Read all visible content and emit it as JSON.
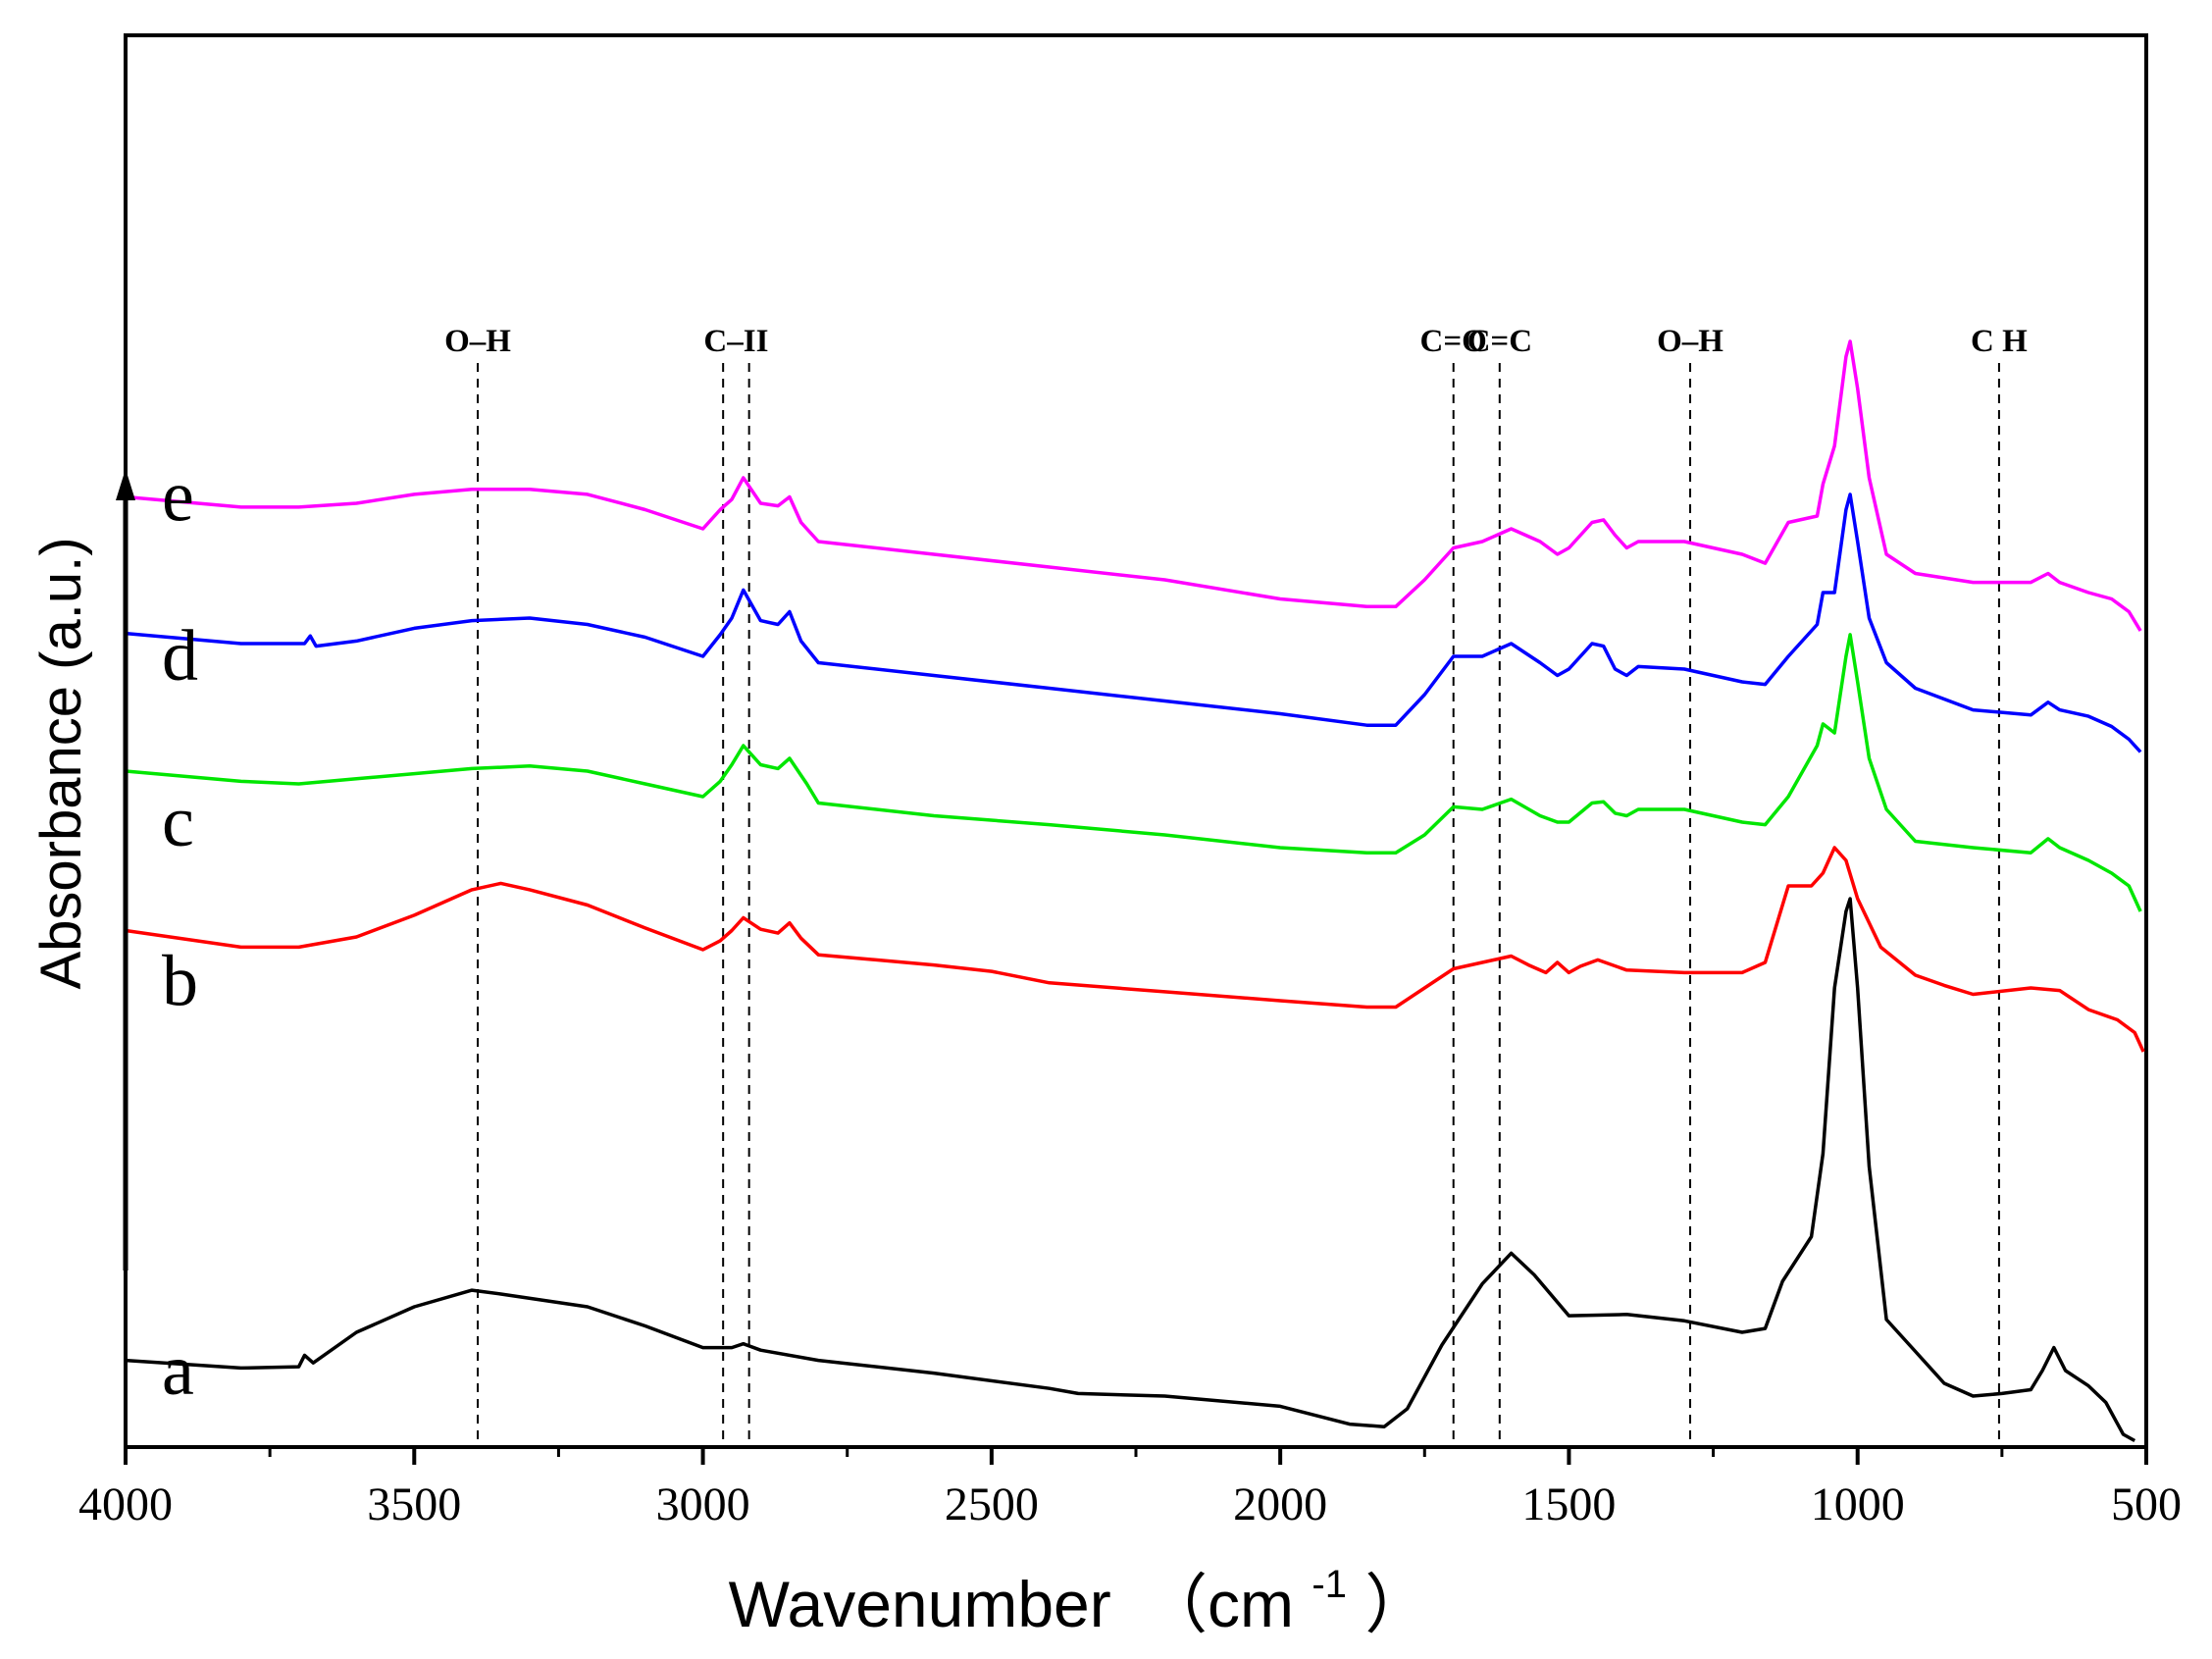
{
  "chart_data": {
    "type": "line",
    "title": "",
    "xlabel": "Wavenumber",
    "xlabel_unit": "（cm",
    "xlabel_unit_sup": "-1",
    "xlabel_unit_close": "）",
    "ylabel": "Absorbance (a.u.)",
    "xlim": [
      4000,
      500
    ],
    "x_ticks": [
      4000,
      3500,
      3000,
      2500,
      2000,
      1500,
      1000,
      500
    ],
    "x_tick_labels": [
      "4000",
      "3500",
      "3000",
      "2500",
      "2000",
      "1500",
      "1000",
      "500"
    ],
    "x_minor_step": 250,
    "ylim": [
      0,
      1
    ],
    "grid": false,
    "legend": "none (labels placed at the left of each curve)",
    "series": [
      {
        "name": "a",
        "color": "#000000",
        "points": [
          [
            4000,
            0.068
          ],
          [
            3800,
            0.062
          ],
          [
            3700,
            0.063
          ],
          [
            3690,
            0.072
          ],
          [
            3675,
            0.066
          ],
          [
            3600,
            0.09
          ],
          [
            3500,
            0.11
          ],
          [
            3400,
            0.123
          ],
          [
            3350,
            0.12
          ],
          [
            3200,
            0.11
          ],
          [
            3100,
            0.095
          ],
          [
            3000,
            0.078
          ],
          [
            2950,
            0.078
          ],
          [
            2930,
            0.081
          ],
          [
            2900,
            0.076
          ],
          [
            2800,
            0.068
          ],
          [
            2600,
            0.058
          ],
          [
            2400,
            0.046
          ],
          [
            2350,
            0.042
          ],
          [
            2200,
            0.04
          ],
          [
            2000,
            0.032
          ],
          [
            1880,
            0.018
          ],
          [
            1820,
            0.016
          ],
          [
            1780,
            0.03
          ],
          [
            1720,
            0.08
          ],
          [
            1650,
            0.128
          ],
          [
            1600,
            0.152
          ],
          [
            1560,
            0.135
          ],
          [
            1500,
            0.103
          ],
          [
            1400,
            0.104
          ],
          [
            1300,
            0.099
          ],
          [
            1200,
            0.09
          ],
          [
            1160,
            0.093
          ],
          [
            1130,
            0.13
          ],
          [
            1080,
            0.165
          ],
          [
            1060,
            0.23
          ],
          [
            1040,
            0.36
          ],
          [
            1020,
            0.42
          ],
          [
            1013,
            0.43
          ],
          [
            1000,
            0.36
          ],
          [
            980,
            0.22
          ],
          [
            950,
            0.1
          ],
          [
            900,
            0.075
          ],
          [
            850,
            0.05
          ],
          [
            800,
            0.04
          ],
          [
            750,
            0.042
          ],
          [
            700,
            0.045
          ],
          [
            680,
            0.06
          ],
          [
            660,
            0.078
          ],
          [
            640,
            0.06
          ],
          [
            600,
            0.048
          ],
          [
            570,
            0.035
          ],
          [
            540,
            0.01
          ],
          [
            520,
            0.005
          ]
        ]
      },
      {
        "name": "b",
        "color": "#ff0000",
        "points": [
          [
            4000,
            0.405
          ],
          [
            3800,
            0.392
          ],
          [
            3700,
            0.392
          ],
          [
            3600,
            0.4
          ],
          [
            3500,
            0.417
          ],
          [
            3400,
            0.437
          ],
          [
            3350,
            0.442
          ],
          [
            3300,
            0.437
          ],
          [
            3200,
            0.425
          ],
          [
            3100,
            0.407
          ],
          [
            3000,
            0.39
          ],
          [
            2970,
            0.397
          ],
          [
            2950,
            0.405
          ],
          [
            2930,
            0.415
          ],
          [
            2900,
            0.406
          ],
          [
            2870,
            0.403
          ],
          [
            2850,
            0.411
          ],
          [
            2830,
            0.399
          ],
          [
            2800,
            0.386
          ],
          [
            2600,
            0.378
          ],
          [
            2500,
            0.373
          ],
          [
            2400,
            0.364
          ],
          [
            2200,
            0.357
          ],
          [
            2000,
            0.35
          ],
          [
            1850,
            0.345
          ],
          [
            1800,
            0.345
          ],
          [
            1750,
            0.36
          ],
          [
            1700,
            0.375
          ],
          [
            1650,
            0.38
          ],
          [
            1600,
            0.385
          ],
          [
            1570,
            0.378
          ],
          [
            1540,
            0.372
          ],
          [
            1520,
            0.38
          ],
          [
            1500,
            0.372
          ],
          [
            1480,
            0.377
          ],
          [
            1450,
            0.382
          ],
          [
            1400,
            0.374
          ],
          [
            1300,
            0.372
          ],
          [
            1200,
            0.372
          ],
          [
            1160,
            0.38
          ],
          [
            1120,
            0.44
          ],
          [
            1080,
            0.44
          ],
          [
            1060,
            0.45
          ],
          [
            1040,
            0.47
          ],
          [
            1020,
            0.46
          ],
          [
            1000,
            0.43
          ],
          [
            960,
            0.392
          ],
          [
            900,
            0.37
          ],
          [
            850,
            0.362
          ],
          [
            800,
            0.355
          ],
          [
            700,
            0.36
          ],
          [
            650,
            0.358
          ],
          [
            600,
            0.343
          ],
          [
            550,
            0.335
          ],
          [
            520,
            0.325
          ],
          [
            505,
            0.31
          ]
        ]
      },
      {
        "name": "c",
        "color": "#00e600",
        "points": [
          [
            4000,
            0.53
          ],
          [
            3800,
            0.522
          ],
          [
            3700,
            0.52
          ],
          [
            3600,
            0.524
          ],
          [
            3500,
            0.528
          ],
          [
            3400,
            0.532
          ],
          [
            3300,
            0.534
          ],
          [
            3200,
            0.53
          ],
          [
            3100,
            0.52
          ],
          [
            3000,
            0.51
          ],
          [
            2970,
            0.522
          ],
          [
            2950,
            0.535
          ],
          [
            2930,
            0.55
          ],
          [
            2900,
            0.535
          ],
          [
            2870,
            0.532
          ],
          [
            2850,
            0.54
          ],
          [
            2820,
            0.52
          ],
          [
            2800,
            0.505
          ],
          [
            2600,
            0.495
          ],
          [
            2400,
            0.488
          ],
          [
            2200,
            0.48
          ],
          [
            2000,
            0.47
          ],
          [
            1850,
            0.466
          ],
          [
            1800,
            0.466
          ],
          [
            1750,
            0.48
          ],
          [
            1700,
            0.502
          ],
          [
            1650,
            0.5
          ],
          [
            1600,
            0.508
          ],
          [
            1550,
            0.495
          ],
          [
            1520,
            0.49
          ],
          [
            1500,
            0.49
          ],
          [
            1460,
            0.505
          ],
          [
            1440,
            0.506
          ],
          [
            1420,
            0.497
          ],
          [
            1400,
            0.495
          ],
          [
            1380,
            0.5
          ],
          [
            1300,
            0.5
          ],
          [
            1200,
            0.49
          ],
          [
            1160,
            0.488
          ],
          [
            1120,
            0.51
          ],
          [
            1070,
            0.55
          ],
          [
            1060,
            0.567
          ],
          [
            1040,
            0.56
          ],
          [
            1020,
            0.62
          ],
          [
            1013,
            0.637
          ],
          [
            1000,
            0.6
          ],
          [
            980,
            0.54
          ],
          [
            950,
            0.5
          ],
          [
            900,
            0.475
          ],
          [
            800,
            0.47
          ],
          [
            700,
            0.466
          ],
          [
            670,
            0.477
          ],
          [
            650,
            0.47
          ],
          [
            600,
            0.46
          ],
          [
            560,
            0.45
          ],
          [
            530,
            0.44
          ],
          [
            510,
            0.42
          ]
        ]
      },
      {
        "name": "d",
        "color": "#0000ff",
        "points": [
          [
            4000,
            0.638
          ],
          [
            3800,
            0.63
          ],
          [
            3690,
            0.63
          ],
          [
            3680,
            0.636
          ],
          [
            3670,
            0.628
          ],
          [
            3600,
            0.632
          ],
          [
            3500,
            0.642
          ],
          [
            3400,
            0.648
          ],
          [
            3300,
            0.65
          ],
          [
            3200,
            0.645
          ],
          [
            3100,
            0.635
          ],
          [
            3000,
            0.62
          ],
          [
            2970,
            0.637
          ],
          [
            2950,
            0.65
          ],
          [
            2930,
            0.672
          ],
          [
            2900,
            0.648
          ],
          [
            2870,
            0.645
          ],
          [
            2850,
            0.655
          ],
          [
            2830,
            0.632
          ],
          [
            2800,
            0.615
          ],
          [
            2600,
            0.605
          ],
          [
            2400,
            0.595
          ],
          [
            2200,
            0.585
          ],
          [
            2000,
            0.575
          ],
          [
            1850,
            0.566
          ],
          [
            1800,
            0.566
          ],
          [
            1750,
            0.59
          ],
          [
            1700,
            0.62
          ],
          [
            1650,
            0.62
          ],
          [
            1600,
            0.63
          ],
          [
            1550,
            0.615
          ],
          [
            1520,
            0.605
          ],
          [
            1500,
            0.61
          ],
          [
            1460,
            0.63
          ],
          [
            1440,
            0.628
          ],
          [
            1420,
            0.61
          ],
          [
            1400,
            0.605
          ],
          [
            1380,
            0.612
          ],
          [
            1300,
            0.61
          ],
          [
            1200,
            0.6
          ],
          [
            1160,
            0.598
          ],
          [
            1120,
            0.62
          ],
          [
            1070,
            0.645
          ],
          [
            1060,
            0.67
          ],
          [
            1040,
            0.67
          ],
          [
            1020,
            0.735
          ],
          [
            1013,
            0.747
          ],
          [
            1000,
            0.71
          ],
          [
            980,
            0.65
          ],
          [
            950,
            0.615
          ],
          [
            900,
            0.595
          ],
          [
            800,
            0.578
          ],
          [
            700,
            0.574
          ],
          [
            670,
            0.584
          ],
          [
            650,
            0.578
          ],
          [
            600,
            0.573
          ],
          [
            560,
            0.565
          ],
          [
            530,
            0.555
          ],
          [
            510,
            0.545
          ]
        ]
      },
      {
        "name": "e",
        "color": "#ff00ff",
        "points": [
          [
            4000,
            0.745
          ],
          [
            3800,
            0.737
          ],
          [
            3700,
            0.737
          ],
          [
            3600,
            0.74
          ],
          [
            3500,
            0.747
          ],
          [
            3400,
            0.751
          ],
          [
            3300,
            0.751
          ],
          [
            3200,
            0.747
          ],
          [
            3100,
            0.735
          ],
          [
            3000,
            0.72
          ],
          [
            2970,
            0.735
          ],
          [
            2950,
            0.743
          ],
          [
            2930,
            0.76
          ],
          [
            2900,
            0.74
          ],
          [
            2870,
            0.738
          ],
          [
            2850,
            0.745
          ],
          [
            2830,
            0.725
          ],
          [
            2800,
            0.71
          ],
          [
            2600,
            0.7
          ],
          [
            2400,
            0.69
          ],
          [
            2200,
            0.68
          ],
          [
            2000,
            0.665
          ],
          [
            1850,
            0.659
          ],
          [
            1800,
            0.659
          ],
          [
            1750,
            0.68
          ],
          [
            1700,
            0.705
          ],
          [
            1650,
            0.71
          ],
          [
            1600,
            0.72
          ],
          [
            1550,
            0.71
          ],
          [
            1520,
            0.7
          ],
          [
            1500,
            0.705
          ],
          [
            1460,
            0.725
          ],
          [
            1440,
            0.727
          ],
          [
            1420,
            0.715
          ],
          [
            1400,
            0.705
          ],
          [
            1380,
            0.71
          ],
          [
            1300,
            0.71
          ],
          [
            1200,
            0.7
          ],
          [
            1160,
            0.693
          ],
          [
            1120,
            0.725
          ],
          [
            1070,
            0.73
          ],
          [
            1060,
            0.755
          ],
          [
            1040,
            0.785
          ],
          [
            1020,
            0.855
          ],
          [
            1013,
            0.867
          ],
          [
            1000,
            0.83
          ],
          [
            980,
            0.76
          ],
          [
            950,
            0.7
          ],
          [
            900,
            0.685
          ],
          [
            800,
            0.678
          ],
          [
            700,
            0.678
          ],
          [
            670,
            0.685
          ],
          [
            650,
            0.678
          ],
          [
            600,
            0.67
          ],
          [
            560,
            0.665
          ],
          [
            530,
            0.655
          ],
          [
            510,
            0.64
          ]
        ]
      }
    ],
    "series_label_positions": [
      {
        "name": "a",
        "y": 0.06
      },
      {
        "name": "b",
        "y": 0.365
      },
      {
        "name": "c",
        "y": 0.49
      },
      {
        "name": "d",
        "y": 0.62
      },
      {
        "name": "e",
        "y": 0.745
      }
    ],
    "reference_lines": [
      {
        "x": 3390,
        "label": "O–H"
      },
      {
        "x": 2965,
        "label": "C–II"
      },
      {
        "x": 2920,
        "label": ""
      },
      {
        "x": 1700,
        "label": "C=O"
      },
      {
        "x": 1620,
        "label": "C=C"
      },
      {
        "x": 1290,
        "label": "O–H"
      },
      {
        "x": 755,
        "label": "C  H"
      }
    ]
  }
}
